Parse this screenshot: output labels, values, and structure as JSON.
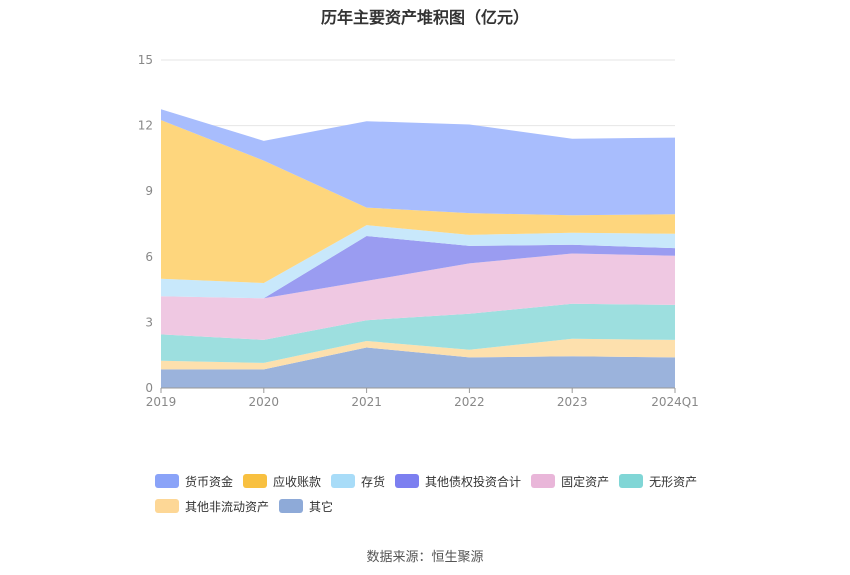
{
  "chart_data": {
    "type": "area",
    "stacked": true,
    "title": "历年主要资产堆积图（亿元）",
    "xlabel": "",
    "ylabel": "",
    "categories": [
      "2019",
      "2020",
      "2021",
      "2022",
      "2023",
      "2024Q1"
    ],
    "ylim": [
      0,
      15
    ],
    "yticks": [
      0,
      3,
      6,
      9,
      12,
      15
    ],
    "grid": true,
    "legend_position": "bottom",
    "series": [
      {
        "name": "其它",
        "color": "#9bb3dc",
        "values": [
          0.85,
          0.85,
          1.85,
          1.4,
          1.45,
          1.4
        ]
      },
      {
        "name": "其他非流动资产",
        "color": "#fde0ad",
        "values": [
          0.4,
          0.3,
          0.3,
          0.35,
          0.8,
          0.8
        ]
      },
      {
        "name": "无形资产",
        "color": "#9ddfdf",
        "values": [
          1.2,
          1.05,
          0.95,
          1.65,
          1.6,
          1.6
        ]
      },
      {
        "name": "固定资产",
        "color": "#efc8e2",
        "values": [
          1.75,
          1.9,
          1.8,
          2.3,
          2.3,
          2.25
        ]
      },
      {
        "name": "其他债权投资合计",
        "color": "#9a9cf1",
        "values": [
          0,
          0,
          2.05,
          0.8,
          0.4,
          0.35
        ]
      },
      {
        "name": "存货",
        "color": "#c8e8fb",
        "values": [
          0.8,
          0.7,
          0.5,
          0.5,
          0.55,
          0.65
        ]
      },
      {
        "name": "应收账款",
        "color": "#fed67d",
        "values": [
          7.25,
          5.6,
          0.8,
          1.0,
          0.8,
          0.9
        ]
      },
      {
        "name": "货币资金",
        "color": "#a8bdfd",
        "values": [
          0.5,
          0.9,
          3.95,
          4.05,
          3.5,
          3.5
        ]
      }
    ],
    "legend": [
      {
        "name": "货币资金",
        "color": "#8aa3f8"
      },
      {
        "name": "应收账款",
        "color": "#f8c040"
      },
      {
        "name": "存货",
        "color": "#a8dcf8"
      },
      {
        "name": "其他债权投资合计",
        "color": "#7c7ff0"
      },
      {
        "name": "固定资产",
        "color": "#e9b6d9"
      },
      {
        "name": "无形资产",
        "color": "#80d6d6"
      },
      {
        "name": "其他非流动资产",
        "color": "#fdd796"
      },
      {
        "name": "其它",
        "color": "#8eaad8"
      }
    ]
  },
  "source": "数据来源：恒生聚源"
}
